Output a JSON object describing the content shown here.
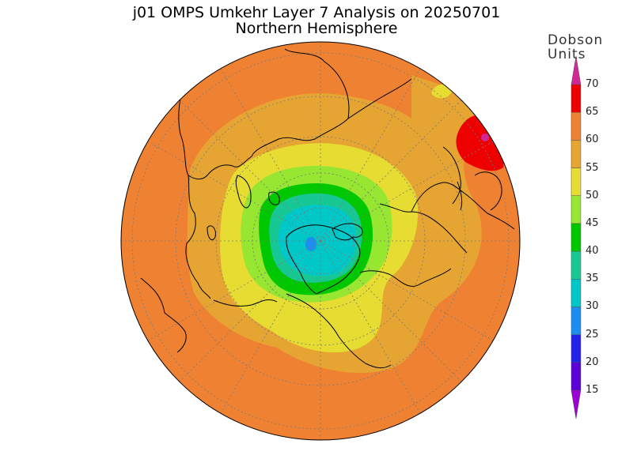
{
  "title": {
    "line1": "j01 OMPS Umkehr Layer 7 Analysis on 20250701",
    "line2": "Northern Hemisphere"
  },
  "colorbar": {
    "units_line1": "Dobson",
    "units_line2": "Units",
    "ticks": [
      "15",
      "20",
      "25",
      "30",
      "35",
      "40",
      "45",
      "50",
      "55",
      "60",
      "65",
      "70"
    ],
    "bands": [
      {
        "from": 10,
        "to": 15,
        "color": "#9a00d6"
      },
      {
        "from": 15,
        "to": 20,
        "color": "#5b00d6"
      },
      {
        "from": 20,
        "to": 25,
        "color": "#2222e8"
      },
      {
        "from": 25,
        "to": 30,
        "color": "#1b8ef0"
      },
      {
        "from": 30,
        "to": 35,
        "color": "#00c8c8"
      },
      {
        "from": 35,
        "to": 40,
        "color": "#17c895"
      },
      {
        "from": 40,
        "to": 45,
        "color": "#00c800"
      },
      {
        "from": 45,
        "to": 50,
        "color": "#96e632"
      },
      {
        "from": 50,
        "to": 55,
        "color": "#e6dc32"
      },
      {
        "from": 55,
        "to": 60,
        "color": "#e6a532"
      },
      {
        "from": 60,
        "to": 65,
        "color": "#ee8232"
      },
      {
        "from": 65,
        "to": 70,
        "color": "#ee0000"
      },
      {
        "from": 70,
        "to": 75,
        "color": "#d22896"
      }
    ]
  },
  "map": {
    "projection": "north polar stereographic",
    "graticule": "dotted",
    "background_level": "60-65",
    "features": [
      "polar minimum 30-35 near pole",
      "maximum 65-70 over East Asia / Japan"
    ]
  }
}
